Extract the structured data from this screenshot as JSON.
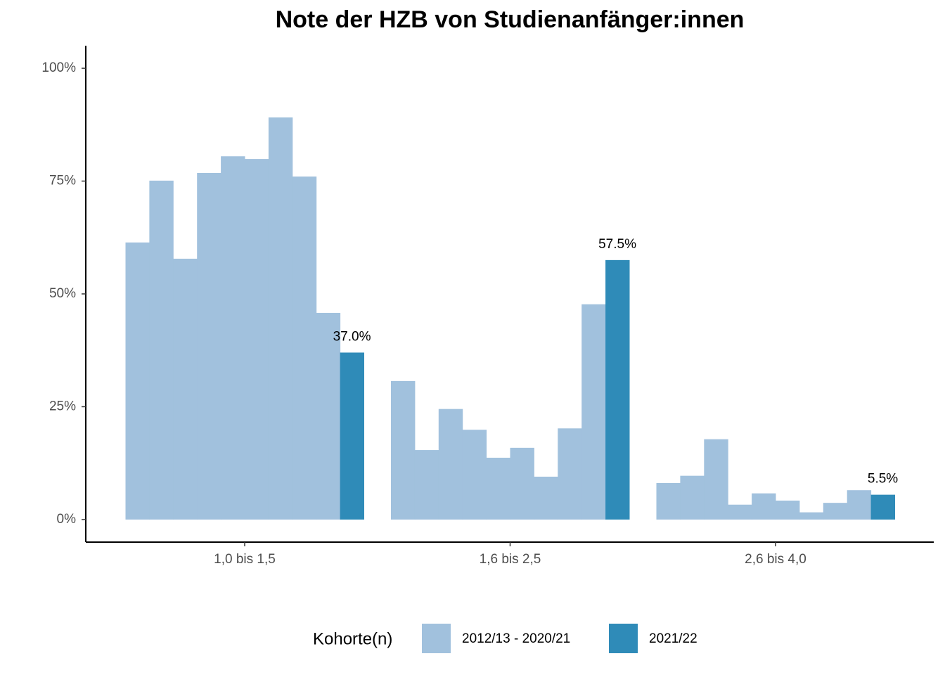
{
  "chart_data": {
    "type": "bar",
    "title": "Note der HZB von Studienanfänger:innen",
    "categories": [
      "1,0 bis 1,5",
      "1,6 bis 2,5",
      "2,6 bis 4,0"
    ],
    "legend_title": "Kohorte(n)",
    "series": [
      {
        "name": "2012/13 - 2020/21",
        "color": "#a1c1dd",
        "values": [
          [
            61.4,
            75.1,
            57.8,
            76.8,
            80.5,
            79.9,
            89.1,
            76.0,
            45.8
          ],
          [
            30.7,
            15.4,
            24.5,
            19.9,
            13.7,
            15.9,
            9.5,
            20.2,
            47.7
          ],
          [
            8.1,
            9.7,
            17.8,
            3.3,
            5.8,
            4.2,
            1.6,
            3.7,
            6.5
          ]
        ]
      },
      {
        "name": "2021/22",
        "color": "#2f8bb8",
        "values": [
          37.0,
          57.5,
          5.5
        ],
        "value_labels": [
          "37.0%",
          "57.5%",
          "5.5%"
        ]
      }
    ],
    "ylim": [
      -5,
      105
    ],
    "yticks": [
      {
        "value": 0,
        "label": "0%"
      },
      {
        "value": 25,
        "label": "25%"
      },
      {
        "value": 50,
        "label": "50%"
      },
      {
        "value": 75,
        "label": "75%"
      },
      {
        "value": 100,
        "label": "100%"
      }
    ],
    "grid": false
  }
}
